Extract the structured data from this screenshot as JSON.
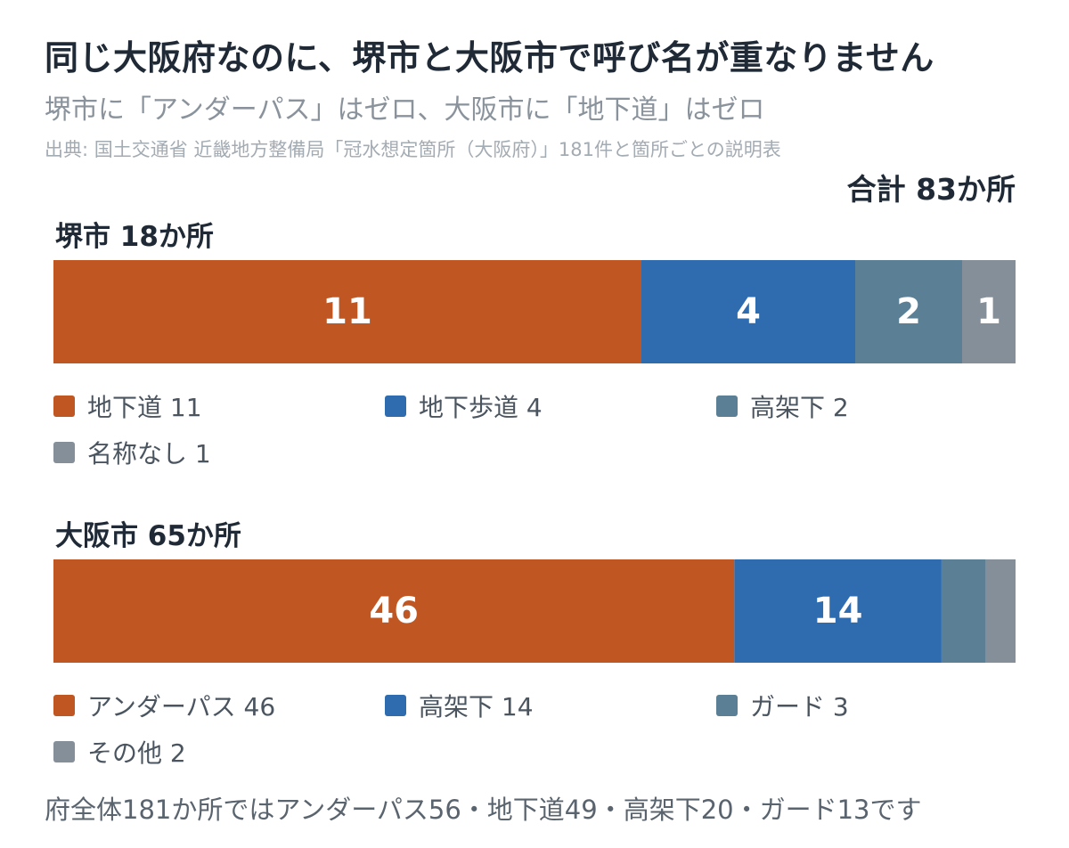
{
  "title": "同じ大阪府なのに、堺市と大阪市で呼び名が重なりません",
  "subtitle": "堺市に「アンダーパス」はゼロ、大阪市に「地下道」はゼロ",
  "source": "出典: 国土交通省 近畿地方整備局「冠水想定箇所（大阪府）」181件と箇所ごとの説明表",
  "total_label": "合計 83か所",
  "footnote": "府全体181か所ではアンダーパス56・地下道49・高架下20・ガード13です",
  "colors": {
    "c1": "#c05723",
    "c2": "#2e6caf",
    "c3": "#5b7f95",
    "c4": "#848f99"
  },
  "chart_data": {
    "type": "bar",
    "orientation": "horizontal",
    "stacked": "100%",
    "groups": [
      {
        "label": "堺市 18か所",
        "segments": [
          {
            "name": "地下道",
            "value": 11,
            "legend": "地下道 11",
            "bar_label": "11",
            "color": "#c05723"
          },
          {
            "name": "地下歩道",
            "value": 4,
            "legend": "地下歩道 4",
            "bar_label": "4",
            "color": "#2e6caf"
          },
          {
            "name": "高架下",
            "value": 2,
            "legend": "高架下 2",
            "bar_label": "2",
            "color": "#5b7f95"
          },
          {
            "name": "名称なし",
            "value": 1,
            "legend": "名称なし 1",
            "bar_label": "1",
            "color": "#848f99"
          }
        ]
      },
      {
        "label": "大阪市 65か所",
        "segments": [
          {
            "name": "アンダーパス",
            "value": 46,
            "legend": "アンダーパス 46",
            "bar_label": "46",
            "color": "#c05723"
          },
          {
            "name": "高架下",
            "value": 14,
            "legend": "高架下 14",
            "bar_label": "14",
            "color": "#2e6caf"
          },
          {
            "name": "ガード",
            "value": 3,
            "legend": "ガード 3",
            "bar_label": "",
            "color": "#5b7f95"
          },
          {
            "name": "その他",
            "value": 2,
            "legend": "その他 2",
            "bar_label": "",
            "color": "#848f99"
          }
        ]
      }
    ]
  }
}
